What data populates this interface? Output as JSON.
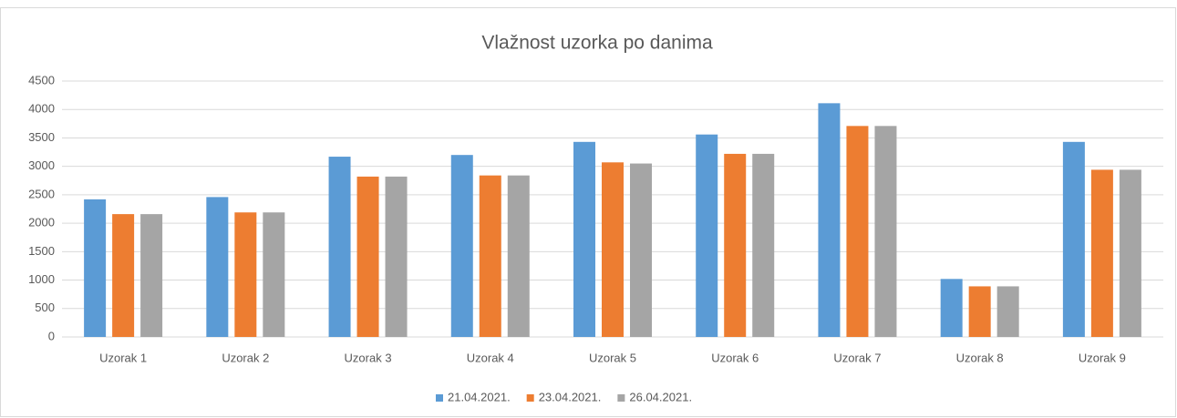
{
  "chart_data": {
    "type": "bar",
    "title": "Vlažnost uzorka po danima",
    "categories": [
      "Uzorak 1",
      "Uzorak 2",
      "Uzorak 3",
      "Uzorak 4",
      "Uzorak 5",
      "Uzorak 6",
      "Uzorak 7",
      "Uzorak 8",
      "Uzorak 9"
    ],
    "series": [
      {
        "name": "21.04.2021.",
        "color": "#5b9bd5",
        "values": [
          2420,
          2460,
          3170,
          3200,
          3430,
          3560,
          4110,
          1020,
          3430
        ]
      },
      {
        "name": "23.04.2021.",
        "color": "#ed7d31",
        "values": [
          2160,
          2190,
          2820,
          2840,
          3070,
          3220,
          3710,
          890,
          2940
        ]
      },
      {
        "name": "26.04.2021.",
        "color": "#a5a5a5",
        "values": [
          2160,
          2190,
          2820,
          2840,
          3050,
          3220,
          3710,
          890,
          2940
        ]
      }
    ],
    "ylim": [
      0,
      4500
    ],
    "yticks": [
      0,
      500,
      1000,
      1500,
      2000,
      2500,
      3000,
      3500,
      4000,
      4500
    ],
    "grid": true,
    "legend": "bottom"
  }
}
